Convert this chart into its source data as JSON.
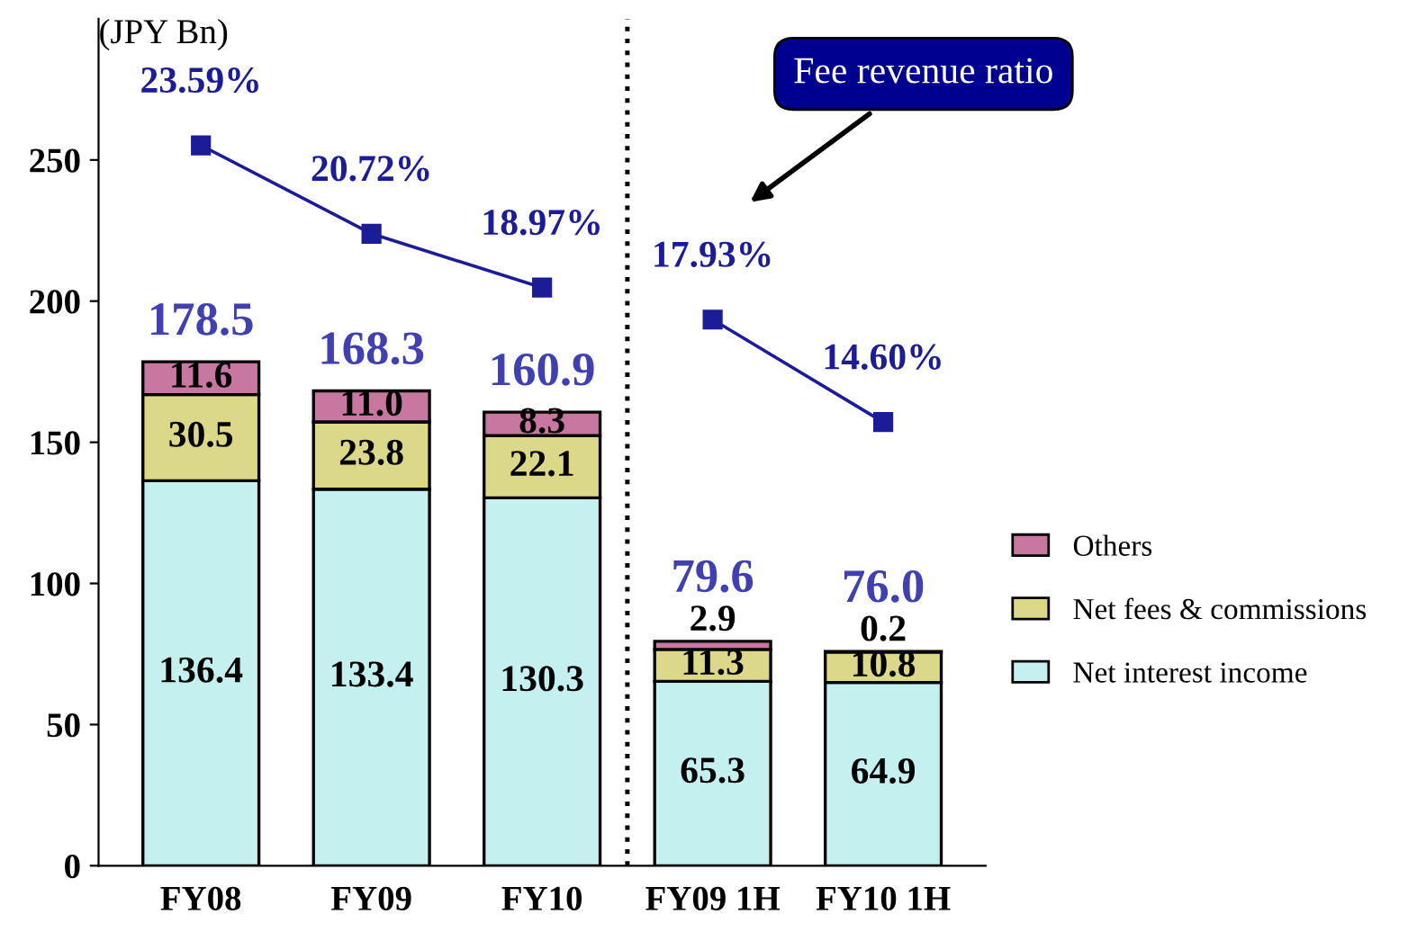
{
  "chart_data": {
    "type": "bar",
    "stacked": true,
    "ylabel": "(JPY Bn)",
    "categories": [
      "FY08",
      "FY09",
      "FY10",
      "FY09 1H",
      "FY10 1H"
    ],
    "series": [
      {
        "name": "Net interest income",
        "color": "#c4f0f0",
        "values": [
          136.4,
          133.4,
          130.3,
          65.3,
          64.9
        ],
        "value_labels": [
          "136.4",
          "133.4",
          "130.3",
          "65.3",
          "64.9"
        ]
      },
      {
        "name": "Net fees & commissions",
        "color": "#dcd88a",
        "values": [
          30.5,
          23.8,
          22.1,
          11.3,
          10.8
        ],
        "value_labels": [
          "30.5",
          "23.8",
          "22.1",
          "11.3",
          "10.8"
        ]
      },
      {
        "name": "Others",
        "color": "#c878a0",
        "values": [
          11.6,
          11.0,
          8.3,
          2.9,
          0.2
        ],
        "value_labels": [
          "11.6",
          "11.0",
          "8.3",
          "2.9",
          "0.2"
        ]
      },
      {
        "type": "line",
        "axis": "y2",
        "color": "#1c1c96",
        "marker": "square",
        "values": [
          23.59,
          20.72,
          18.97,
          null,
          null
        ],
        "value_labels": [
          "23.59%",
          "20.72%",
          "18.97%",
          null,
          null
        ]
      },
      {
        "type": "line",
        "axis": "y2",
        "color": "#1c1c96",
        "marker": "square",
        "values": [
          null,
          null,
          null,
          17.93,
          14.6
        ],
        "value_labels": [
          null,
          null,
          null,
          "17.93%",
          "14.60%"
        ]
      }
    ],
    "totals": [
      "178.5",
      "168.3",
      "160.9",
      "79.6",
      "76.0"
    ],
    "ylim": [
      0,
      300
    ],
    "yticks": [
      0,
      50,
      100,
      150,
      200,
      250
    ],
    "y2lim": [
      0.19,
      27.7
    ],
    "annotations": [
      "Fee revenue ratio"
    ],
    "legend": "right",
    "grid": false
  }
}
